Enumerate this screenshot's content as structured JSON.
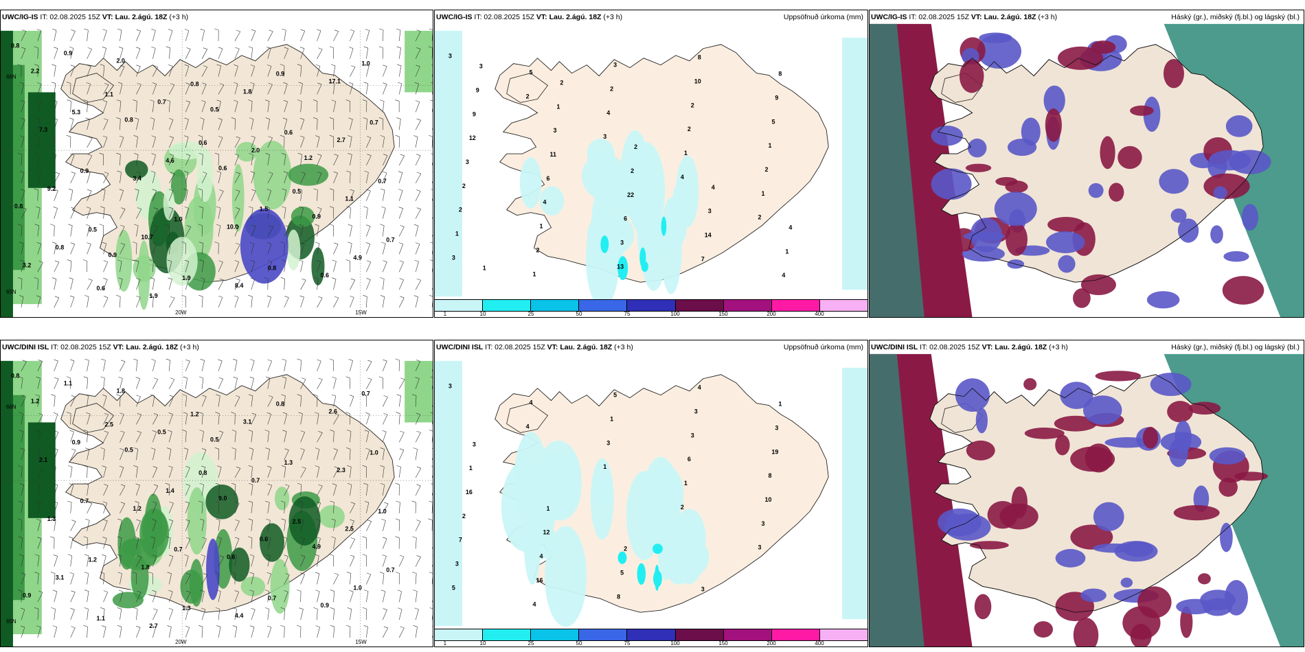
{
  "colors": {
    "land": "#f2e6d6",
    "rain_scale": [
      "#c9f5f7",
      "#22eef2",
      "#0ac3e8",
      "#3a67e8",
      "#2f2fb8",
      "#6b0e4a",
      "#a3117e",
      "#ff1aa6",
      "#f7b0f4"
    ],
    "cloud_high": "#2d8a78",
    "cloud_mid": "#5a58c8",
    "cloud_low": "#8a1a45",
    "precip_green": [
      "#d2f2cf",
      "#8fd68a",
      "#3d9a47",
      "#105a23"
    ]
  },
  "rows": [
    {
      "model": "UWC/IG-IS",
      "it": "IT: 02.08.2025 15Z",
      "vt": "VT: Lau. 2.ágú. 18Z",
      "lead": "(+3 h)",
      "panels": {
        "precip": {
          "values": [
            "0.8",
            "1.1",
            "0.6",
            "0.5",
            "0.7",
            "0.6",
            "0.8",
            "0.6",
            "0.7",
            "0.5",
            "1.9",
            "0.9",
            "0.7",
            "0.9",
            "1.0",
            "0.8",
            "1.0",
            "5.3",
            "4.6",
            "1.5",
            "4.9",
            "0.9",
            "0.7",
            "2.0",
            "1.1",
            "0.8",
            "1.9",
            "1.8",
            "2.7",
            "9.2",
            "10.7",
            "8.4",
            "17.1",
            "7.3",
            "3.4",
            "10.0",
            "0.6",
            "2.2",
            "0.8",
            "0.6",
            "0.9",
            "3.2",
            "2.0",
            "0.5",
            "1.2",
            "0.8",
            "0.9"
          ],
          "axis": {
            "lon_20w": "20W",
            "lon_15w": "15W",
            "lat_65n": "65N",
            "lat_66n": "66N"
          }
        },
        "accum": {
          "title": "Uppsöfnuð úrkoma (mm)",
          "values": [
            "3",
            "2",
            "3",
            "4",
            "2",
            "3",
            "5",
            "4",
            "1",
            "1",
            "1",
            "1",
            "2",
            "2",
            "2",
            "2",
            "2",
            "3",
            "2",
            "1",
            "2",
            "1",
            "13",
            "10",
            "5",
            "3",
            "4",
            "3",
            "8",
            "9",
            "12",
            "6",
            "6",
            "7",
            "8",
            "9",
            "11",
            "22",
            "14",
            "4",
            "9",
            "3",
            "2",
            "3",
            "1",
            "3",
            "1",
            "2",
            "4",
            "4",
            "1",
            "2"
          ],
          "legend_ticks": [
            "1",
            "10",
            "25",
            "50",
            "75",
            "100",
            "150",
            "200",
            "400"
          ]
        },
        "cloud": {
          "title": "Háský (gr.), miðský (fj.bl.) og lágský (bl.)"
        }
      }
    },
    {
      "model": "UWC/DINI ISL",
      "it": "IT: 02.08.2025 15Z",
      "vt": "VT: Lau. 2.ágú. 18Z",
      "lead": "(+3 h)",
      "panels": {
        "precip": {
          "values": [
            "0.8",
            "2.5",
            "0.8",
            "2.5",
            "0.7",
            "1.1",
            "1.2",
            "1.3",
            "1.0",
            "1.2",
            "1.3",
            "0.8",
            "1.0",
            "0.7",
            "0.7",
            "0.7",
            "0.7",
            "0.9",
            "1.4",
            "0.6",
            "1.0",
            "1.1",
            "0.5",
            "0.7",
            "2.5",
            "3.1",
            "2.7",
            "3.1",
            "2.3",
            "1.3",
            "1.8",
            "4.4",
            "2.6",
            "2.1",
            "1.2",
            "0.6",
            "0.9",
            "1.2",
            "0.5",
            "9.0",
            "4.9",
            "0.9",
            "1.8",
            "0.5"
          ],
          "axis": {
            "lon_20w": "20W",
            "lon_15w": "15W",
            "lat_65n": "65N",
            "lat_66n": "66N"
          }
        },
        "accum": {
          "title": "Uppsöfnuð úrkoma (mm)",
          "values": [
            "3",
            "4",
            "1",
            "2",
            "3",
            "5",
            "4",
            "3",
            "1",
            "3",
            "3",
            "4",
            "1",
            "6",
            "10",
            "7",
            "16",
            "5",
            "3",
            "8",
            "2",
            "4",
            "8",
            "3",
            "19",
            "16",
            "12",
            "5",
            "4",
            "3",
            "1",
            "1",
            "2",
            "3",
            "1",
            "3"
          ],
          "legend_ticks": [
            "1",
            "10",
            "25",
            "50",
            "75",
            "100",
            "150",
            "200",
            "400"
          ]
        },
        "cloud": {
          "title": "Háský (gr.), miðský (fj.bl.) og lágský (bl.)"
        }
      }
    }
  ]
}
